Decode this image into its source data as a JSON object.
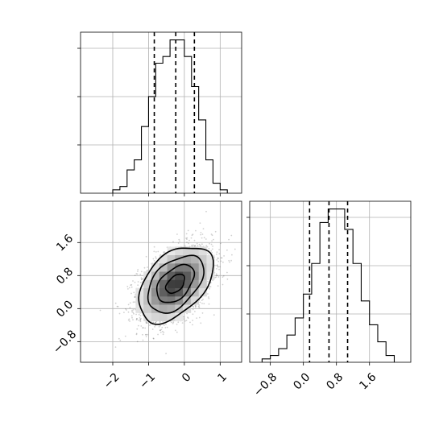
{
  "chart_data": {
    "type": "corner",
    "parameters": [
      {
        "range": [
          -2.9,
          1.6
        ],
        "ticks": [
          -2,
          -1,
          0,
          1
        ],
        "tick_labels": [
          "−2",
          "−1",
          "0",
          "1"
        ],
        "quantiles": [
          -0.84,
          -0.24,
          0.28
        ],
        "histogram": {
          "bin_edges": [
            -2.0,
            -1.8,
            -1.6,
            -1.4,
            -1.2,
            -1.0,
            -0.8,
            -0.6,
            -0.4,
            -0.2,
            0.0,
            0.2,
            0.4,
            0.6,
            0.8,
            1.0,
            1.2
          ],
          "counts": [
            1,
            2,
            7,
            10,
            20,
            29,
            39,
            41,
            46,
            46,
            41,
            32,
            22,
            10,
            3,
            1
          ]
        }
      },
      {
        "range": [
          -1.3,
          2.6
        ],
        "ticks": [
          -0.8,
          0.0,
          0.8,
          1.6
        ],
        "tick_labels": [
          "−0.8",
          "0.0",
          "0.8",
          "1.6"
        ],
        "quantiles": [
          0.15,
          0.62,
          1.07
        ],
        "histogram": {
          "bin_edges": [
            -1.0,
            -0.8,
            -0.6,
            -0.4,
            -0.2,
            0.0,
            0.2,
            0.4,
            0.6,
            0.8,
            1.0,
            1.2,
            1.4,
            1.6,
            1.8,
            2.0,
            2.2
          ],
          "counts": [
            1,
            2,
            4,
            8,
            13,
            20,
            29,
            41,
            45,
            45,
            39,
            29,
            18,
            11,
            6,
            2
          ]
        }
      }
    ],
    "scatter_2d": {
      "x_param": 0,
      "y_param": 1,
      "center": [
        -0.25,
        0.6
      ],
      "sigma": [
        0.52,
        0.46
      ],
      "correlation": 0.45,
      "contour_levels_sigma": [
        0.5,
        1.0,
        1.5,
        2.0
      ]
    },
    "grid": true
  }
}
